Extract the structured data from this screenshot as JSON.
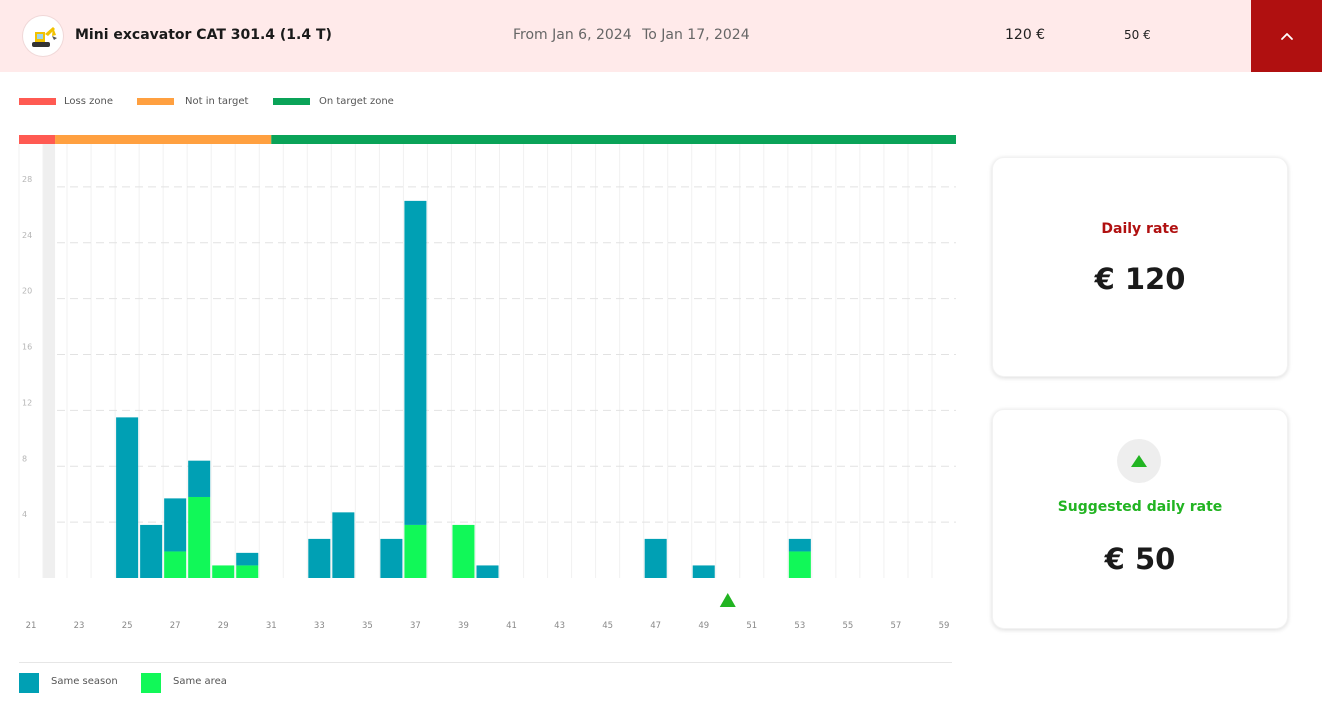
{
  "header": {
    "product_name": "Mini excavator CAT 301.4 (1.4 T)",
    "date_from": "From Jan 6, 2024",
    "date_to": "To Jan 17, 2024",
    "price_current": "120 €",
    "price_suggested": "50 €",
    "collapse_icon": "chevron-up-icon",
    "avatar_icon": "excavator-icon"
  },
  "zone_legend": [
    {
      "label": "Loss zone",
      "color": "#ff5a52"
    },
    {
      "label": "Not in target",
      "color": "#ffa040"
    },
    {
      "label": "On target zone",
      "color": "#0aa358"
    }
  ],
  "cards": {
    "daily_rate_label": "Daily rate",
    "daily_rate_value": "€ 120",
    "suggested_label": "Suggested daily rate",
    "suggested_value": "€ 50",
    "trend_icon": "triangle-up-icon"
  },
  "series_legend": [
    {
      "label": "Same season",
      "color": "#00a0b4"
    },
    {
      "label": "Same area",
      "color": "#11f858"
    }
  ],
  "chart_data": {
    "type": "bar",
    "stacked": true,
    "x_ticks": [
      21,
      23,
      25,
      27,
      29,
      31,
      33,
      35,
      37,
      39,
      41,
      43,
      45,
      47,
      49,
      51,
      53,
      55,
      57,
      59
    ],
    "y_ticks": [
      4,
      8,
      12,
      16,
      20,
      24,
      28
    ],
    "xlim": [
      20.5,
      59.5
    ],
    "ylim": [
      0,
      31
    ],
    "grid": true,
    "zones": [
      {
        "name": "Loss zone",
        "from": 20.5,
        "to": 22,
        "color": "#ff5a52"
      },
      {
        "name": "Not in target",
        "from": 22,
        "to": 31,
        "color": "#ffa040"
      },
      {
        "name": "On target zone",
        "from": 31,
        "to": 59.5,
        "color": "#0aa358"
      }
    ],
    "shaded_range": [
      21.5,
      22
    ],
    "categories": [
      25,
      26,
      27,
      28,
      29,
      30,
      33,
      34,
      36,
      37,
      39,
      40,
      47,
      49,
      53
    ],
    "series": [
      {
        "name": "Same season",
        "color": "#00a0b4",
        "values": [
          11.5,
          3.8,
          3.8,
          2.6,
          0,
          0.9,
          2.8,
          4.7,
          2.8,
          23.2,
          0,
          0.9,
          2.8,
          0.9,
          0.9
        ]
      },
      {
        "name": "Same area",
        "color": "#11f858",
        "values": [
          0,
          0,
          1.9,
          5.8,
          0.9,
          0.9,
          0,
          0,
          0,
          3.8,
          3.8,
          0,
          0,
          0,
          1.9
        ]
      }
    ],
    "marker": {
      "x": 50,
      "shape": "triangle",
      "color": "#22b422"
    }
  }
}
